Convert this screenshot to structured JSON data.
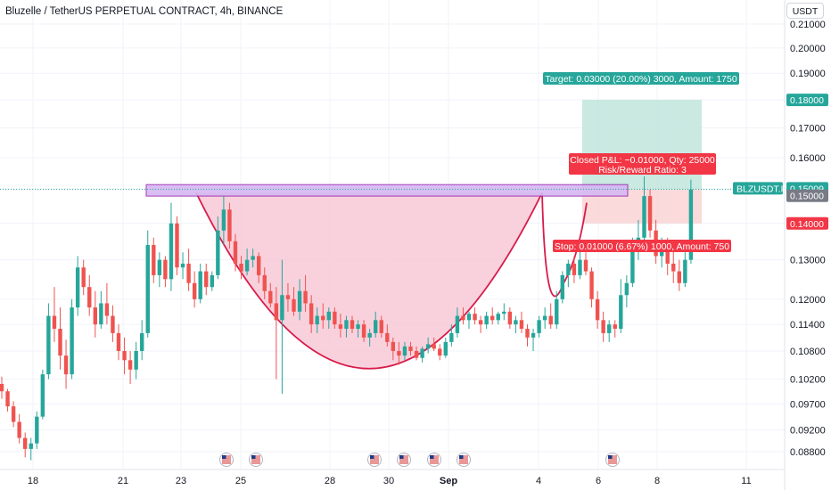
{
  "header": {
    "title": "Bluzelle / TetherUS PERPETUAL CONTRACT, 4h, BINANCE",
    "currency": "USDT"
  },
  "colors": {
    "up": "#26a69a",
    "down": "#ef5350",
    "profit_zone": "#bfe5dc",
    "loss_zone": "#f9d3d3",
    "cup_fill": "#f8c6d4",
    "cup_line": "#d81b4a",
    "resistance_fill": "#d5b8f2",
    "resistance_border": "#9c27b0",
    "target_tag": "#26a69a",
    "stop_tag": "#f23645",
    "symbol_tag": "#26a69a",
    "entry_tag": "#787b86"
  },
  "chart_data": {
    "type": "candlestick",
    "symbol": "BLZUSDT.P",
    "timeframe": "4h",
    "price_scale": "log",
    "y_ticks": [
      "0.21000",
      "0.20000",
      "0.19000",
      "0.18000",
      "0.17000",
      "0.16000",
      "0.15000",
      "0.14000",
      "0.13000",
      "0.12000",
      "0.11400",
      "0.10800",
      "0.10200",
      "0.09700",
      "0.09200",
      "0.08800"
    ],
    "x_ticks": [
      "18",
      "21",
      "23",
      "25",
      "28",
      "30",
      "Sep",
      "4",
      "6",
      "8",
      "11"
    ],
    "price_tags": {
      "symbol": {
        "label": "BLZUSDT.P",
        "value": "0.15009"
      },
      "target_price": "0.18000",
      "entry_price": "0.15000",
      "stop_price": "0.14000"
    },
    "position": {
      "target_label": "Target: 0.03000 (20.00%) 3000, Amount: 1750",
      "closed_label_1": "Closed P&L: −0.01000, Qty: 25000",
      "closed_label_2": "Risk/Reward Ratio: 3",
      "stop_label": "Stop: 0.01000 (6.67%) 1000, Amount: 750",
      "entry": 0.15,
      "target": 0.18,
      "stop": 0.14
    },
    "pattern": {
      "type": "cup-and-handle",
      "resistance_low": 0.148,
      "resistance_high": 0.1515
    },
    "candles": [
      [
        0.101,
        0.1025,
        0.098,
        0.0995
      ],
      [
        0.0995,
        0.1,
        0.0955,
        0.0965
      ],
      [
        0.0965,
        0.0975,
        0.0925,
        0.0935
      ],
      [
        0.0935,
        0.095,
        0.0895,
        0.0905
      ],
      [
        0.0905,
        0.0915,
        0.087,
        0.0885
      ],
      [
        0.0885,
        0.0905,
        0.0865,
        0.0895
      ],
      [
        0.0895,
        0.0955,
        0.0885,
        0.0945
      ],
      [
        0.0945,
        0.104,
        0.094,
        0.103
      ],
      [
        0.103,
        0.119,
        0.102,
        0.116
      ],
      [
        0.116,
        0.123,
        0.11,
        0.113
      ],
      [
        0.113,
        0.118,
        0.104,
        0.107
      ],
      [
        0.107,
        0.1105,
        0.1,
        0.103
      ],
      [
        0.103,
        0.12,
        0.102,
        0.118
      ],
      [
        0.118,
        0.131,
        0.116,
        0.128
      ],
      [
        0.128,
        0.13,
        0.121,
        0.123
      ],
      [
        0.123,
        0.126,
        0.116,
        0.118
      ],
      [
        0.118,
        0.122,
        0.111,
        0.114
      ],
      [
        0.114,
        0.122,
        0.113,
        0.119
      ],
      [
        0.119,
        0.124,
        0.114,
        0.116
      ],
      [
        0.116,
        0.1185,
        0.11,
        0.112
      ],
      [
        0.112,
        0.114,
        0.106,
        0.108
      ],
      [
        0.108,
        0.111,
        0.103,
        0.106
      ],
      [
        0.106,
        0.108,
        0.101,
        0.104
      ],
      [
        0.104,
        0.11,
        0.102,
        0.108
      ],
      [
        0.108,
        0.115,
        0.106,
        0.112
      ],
      [
        0.112,
        0.138,
        0.111,
        0.134
      ],
      [
        0.134,
        0.136,
        0.124,
        0.126
      ],
      [
        0.126,
        0.132,
        0.123,
        0.13
      ],
      [
        0.13,
        0.131,
        0.123,
        0.125
      ],
      [
        0.125,
        0.146,
        0.122,
        0.14
      ],
      [
        0.14,
        0.142,
        0.126,
        0.128
      ],
      [
        0.128,
        0.132,
        0.125,
        0.129
      ],
      [
        0.129,
        0.133,
        0.122,
        0.124
      ],
      [
        0.124,
        0.127,
        0.118,
        0.12
      ],
      [
        0.12,
        0.129,
        0.119,
        0.127
      ],
      [
        0.127,
        0.129,
        0.121,
        0.123
      ],
      [
        0.123,
        0.127,
        0.122,
        0.126
      ],
      [
        0.126,
        0.142,
        0.125,
        0.138
      ],
      [
        0.138,
        0.148,
        0.134,
        0.144
      ],
      [
        0.144,
        0.146,
        0.133,
        0.135
      ],
      [
        0.135,
        0.137,
        0.127,
        0.129
      ],
      [
        0.129,
        0.131,
        0.125,
        0.127
      ],
      [
        0.127,
        0.133,
        0.126,
        0.13
      ],
      [
        0.13,
        0.133,
        0.128,
        0.131
      ],
      [
        0.131,
        0.132,
        0.124,
        0.126
      ],
      [
        0.126,
        0.128,
        0.12,
        0.122
      ],
      [
        0.122,
        0.124,
        0.118,
        0.119
      ],
      [
        0.119,
        0.123,
        0.102,
        0.115
      ],
      [
        0.115,
        0.13,
        0.099,
        0.121
      ],
      [
        0.121,
        0.124,
        0.117,
        0.12
      ],
      [
        0.12,
        0.123,
        0.116,
        0.117
      ],
      [
        0.117,
        0.125,
        0.115,
        0.122
      ],
      [
        0.122,
        0.126,
        0.117,
        0.119
      ],
      [
        0.119,
        0.121,
        0.112,
        0.114
      ],
      [
        0.114,
        0.118,
        0.112,
        0.116
      ],
      [
        0.116,
        0.119,
        0.113,
        0.115
      ],
      [
        0.115,
        0.118,
        0.113,
        0.117
      ],
      [
        0.117,
        0.118,
        0.113,
        0.114
      ],
      [
        0.114,
        0.1165,
        0.111,
        0.113
      ],
      [
        0.113,
        0.116,
        0.111,
        0.115
      ],
      [
        0.115,
        0.116,
        0.112,
        0.113
      ],
      [
        0.113,
        0.115,
        0.111,
        0.114
      ],
      [
        0.114,
        0.115,
        0.11,
        0.111
      ],
      [
        0.111,
        0.113,
        0.109,
        0.112
      ],
      [
        0.112,
        0.117,
        0.111,
        0.115
      ],
      [
        0.115,
        0.116,
        0.111,
        0.112
      ],
      [
        0.112,
        0.114,
        0.109,
        0.11
      ],
      [
        0.11,
        0.111,
        0.106,
        0.108
      ],
      [
        0.108,
        0.11,
        0.105,
        0.107
      ],
      [
        0.107,
        0.11,
        0.106,
        0.109
      ],
      [
        0.109,
        0.11,
        0.107,
        0.108
      ],
      [
        0.108,
        0.109,
        0.106,
        0.1065
      ],
      [
        0.1065,
        0.109,
        0.1055,
        0.1085
      ],
      [
        0.1085,
        0.111,
        0.1075,
        0.1095
      ],
      [
        0.1095,
        0.111,
        0.108,
        0.1085
      ],
      [
        0.1085,
        0.1095,
        0.106,
        0.107
      ],
      [
        0.107,
        0.111,
        0.1065,
        0.11
      ],
      [
        0.11,
        0.114,
        0.109,
        0.112
      ],
      [
        0.112,
        0.118,
        0.111,
        0.116
      ],
      [
        0.116,
        0.118,
        0.114,
        0.115
      ],
      [
        0.115,
        0.117,
        0.113,
        0.1165
      ],
      [
        0.1165,
        0.118,
        0.114,
        0.115
      ],
      [
        0.115,
        0.116,
        0.112,
        0.114
      ],
      [
        0.114,
        0.117,
        0.113,
        0.116
      ],
      [
        0.116,
        0.118,
        0.114,
        0.115
      ],
      [
        0.115,
        0.117,
        0.114,
        0.1165
      ],
      [
        0.1165,
        0.119,
        0.115,
        0.117
      ],
      [
        0.117,
        0.118,
        0.113,
        0.114
      ],
      [
        0.114,
        0.116,
        0.112,
        0.115
      ],
      [
        0.115,
        0.117,
        0.112,
        0.113
      ],
      [
        0.113,
        0.114,
        0.109,
        0.111
      ],
      [
        0.111,
        0.113,
        0.108,
        0.112
      ],
      [
        0.112,
        0.116,
        0.111,
        0.115
      ],
      [
        0.115,
        0.118,
        0.113,
        0.116
      ],
      [
        0.116,
        0.119,
        0.113,
        0.114
      ],
      [
        0.114,
        0.122,
        0.113,
        0.12
      ],
      [
        0.12,
        0.127,
        0.119,
        0.126
      ],
      [
        0.126,
        0.13,
        0.123,
        0.129
      ],
      [
        0.129,
        0.131,
        0.124,
        0.126
      ],
      [
        0.126,
        0.133,
        0.125,
        0.13
      ],
      [
        0.13,
        0.132,
        0.126,
        0.127
      ],
      [
        0.127,
        0.128,
        0.118,
        0.12
      ],
      [
        0.12,
        0.122,
        0.113,
        0.115
      ],
      [
        0.115,
        0.117,
        0.11,
        0.112
      ],
      [
        0.112,
        0.115,
        0.11,
        0.114
      ],
      [
        0.114,
        0.115,
        0.111,
        0.113
      ],
      [
        0.113,
        0.125,
        0.112,
        0.121
      ],
      [
        0.121,
        0.126,
        0.118,
        0.124
      ],
      [
        0.124,
        0.136,
        0.123,
        0.133
      ],
      [
        0.133,
        0.141,
        0.13,
        0.136
      ],
      [
        0.136,
        0.154,
        0.134,
        0.148
      ],
      [
        0.148,
        0.15,
        0.136,
        0.138
      ],
      [
        0.138,
        0.141,
        0.129,
        0.131
      ],
      [
        0.131,
        0.136,
        0.128,
        0.134
      ],
      [
        0.134,
        0.136,
        0.126,
        0.129
      ],
      [
        0.129,
        0.133,
        0.124,
        0.127
      ],
      [
        0.127,
        0.13,
        0.122,
        0.124
      ],
      [
        0.124,
        0.132,
        0.123,
        0.13
      ],
      [
        0.13,
        0.153,
        0.129,
        0.15
      ]
    ],
    "events_count": 7
  }
}
